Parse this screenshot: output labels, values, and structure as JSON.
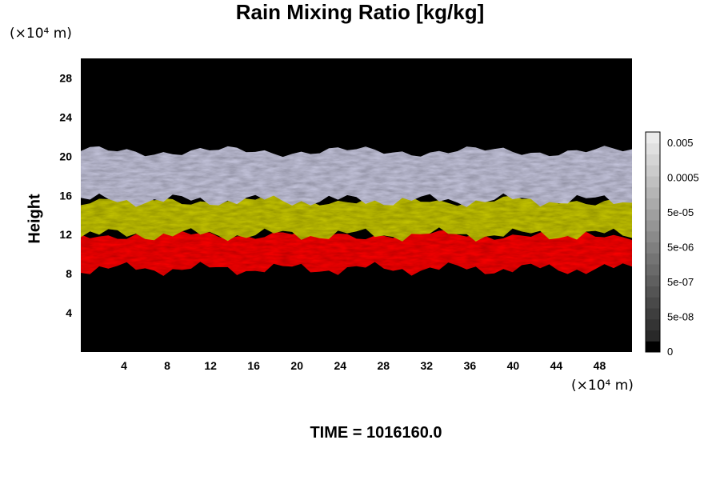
{
  "chart_data": {
    "type": "heatmap",
    "title": "Rain Mixing Ratio [kg/kg]",
    "ylabel": "Height",
    "xlabel": "",
    "x_unit": "(×10⁴ m)",
    "y_unit": "(×10⁴ m)",
    "xlim": [
      0,
      51
    ],
    "ylim": [
      0,
      30
    ],
    "x_ticks": [
      "4",
      "8",
      "12",
      "16",
      "20",
      "24",
      "28",
      "32",
      "36",
      "40",
      "44",
      "48"
    ],
    "y_ticks": [
      "4",
      "8",
      "12",
      "16",
      "20",
      "24",
      "28"
    ],
    "colorbar": {
      "ticks": [
        "0.005",
        "0.0005",
        "5e-05",
        "5e-06",
        "5e-07",
        "5e-08",
        "0"
      ],
      "scale": "log"
    },
    "layers": [
      {
        "color_name": "red",
        "color": "#ff0000",
        "y_bottom": 8.5,
        "y_top": 12.0
      },
      {
        "color_name": "yellow",
        "color": "#c8c800",
        "y_bottom": 12.0,
        "y_top": 15.5
      },
      {
        "color_name": "light-lavender",
        "color": "#c8c8e0",
        "y_bottom": 15.5,
        "y_top": 20.5
      }
    ],
    "background_color": "#000000"
  },
  "footer": {
    "time_label": "TIME = 1016160.0"
  }
}
